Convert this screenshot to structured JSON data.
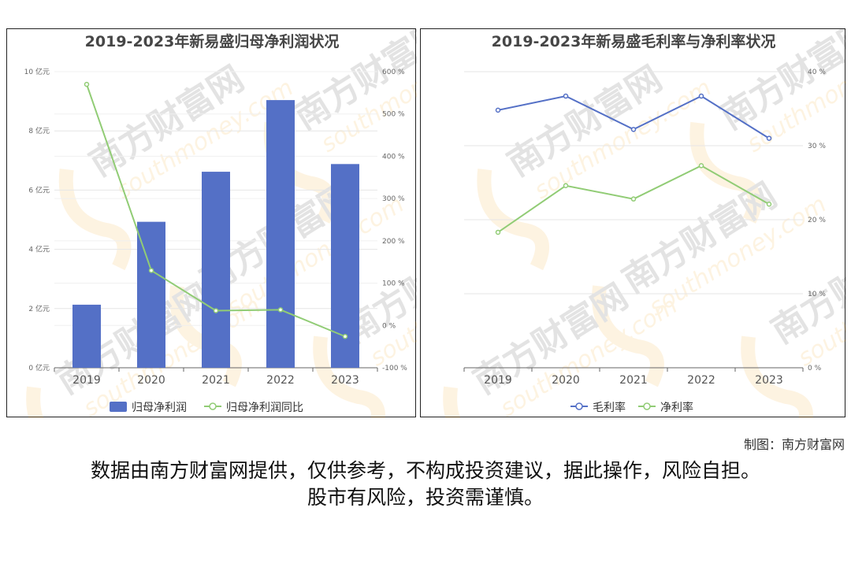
{
  "chart_data": [
    {
      "type": "bar",
      "title": "2019-2023年新易盛归母净利润状况",
      "categories": [
        "2019",
        "2020",
        "2021",
        "2022",
        "2023"
      ],
      "series": [
        {
          "name": "归母净利润",
          "type": "bar",
          "axis": "left",
          "values": [
            2.13,
            4.93,
            6.62,
            9.04,
            6.88
          ],
          "color": "#5470c6"
        },
        {
          "name": "归母净利润同比",
          "type": "line",
          "axis": "right",
          "values": [
            570,
            130,
            35,
            37,
            -26
          ],
          "color": "#91cc75"
        }
      ],
      "yaxis_left": {
        "ticks": [
          "0 亿元",
          "2 亿元",
          "4 亿元",
          "6 亿元",
          "8 亿元",
          "10 亿元"
        ],
        "ylim": [
          0,
          10
        ]
      },
      "yaxis_right": {
        "ticks": [
          "-100 %",
          "0 %",
          "100 %",
          "200 %",
          "300 %",
          "400 %",
          "500 %",
          "600 %"
        ],
        "ylim": [
          -100,
          600
        ]
      },
      "grid": true,
      "legend": "bottom"
    },
    {
      "type": "line",
      "title": "2019-2023年新易盛毛利率与净利率状况",
      "categories": [
        "2019",
        "2020",
        "2021",
        "2022",
        "2023"
      ],
      "series": [
        {
          "name": "毛利率",
          "values": [
            34.8,
            36.7,
            32.2,
            36.7,
            31.0
          ],
          "color": "#5470c6"
        },
        {
          "name": "净利率",
          "values": [
            18.3,
            24.6,
            22.8,
            27.3,
            22.1
          ],
          "color": "#91cc75"
        }
      ],
      "yaxis_right": {
        "ticks": [
          "0 %",
          "10 %",
          "20 %",
          "30 %",
          "40 %"
        ],
        "ylim": [
          0,
          40
        ]
      },
      "grid": true,
      "legend": "bottom"
    }
  ],
  "credit": "制图：南方财富网",
  "disclaimer_line1": "数据由南方财富网提供，仅供参考，不构成投资建议，据此操作，风险自担。",
  "disclaimer_line2": "股市有风险，投资需谨慎。",
  "watermark_text": "南方财富网",
  "watermark_url": "southmoney.com"
}
